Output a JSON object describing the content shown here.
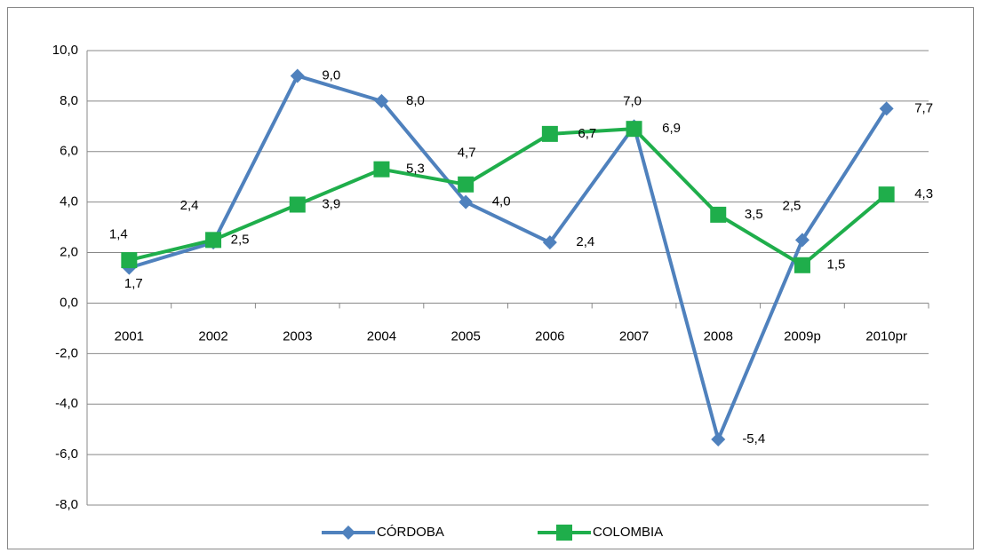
{
  "chart_data": {
    "type": "line",
    "categories": [
      "2001",
      "2002",
      "2003",
      "2004",
      "2005",
      "2006",
      "2007",
      "2008",
      "2009p",
      "2010pr"
    ],
    "series": [
      {
        "name": "CÓRDOBA",
        "color": "#4f81bd",
        "marker": "diamond",
        "values": [
          1.4,
          2.4,
          9.0,
          8.0,
          4.0,
          2.4,
          7.0,
          -5.4,
          2.5,
          7.7
        ],
        "value_labels": [
          "1,4",
          "2,4",
          "9,0",
          "8,0",
          "4,0",
          "2,4",
          "7,0",
          "-5,4",
          "2,5",
          "7,7"
        ]
      },
      {
        "name": "COLOMBIA",
        "color": "#1fae4b",
        "marker": "square",
        "values": [
          1.7,
          2.5,
          3.9,
          5.3,
          4.7,
          6.7,
          6.9,
          3.5,
          1.5,
          4.3
        ],
        "value_labels": [
          "1,7",
          "2,5",
          "3,9",
          "5,3",
          "4,7",
          "6,7",
          "6,9",
          "3,5",
          "1,5",
          "4,3"
        ]
      }
    ],
    "ylim": [
      -8,
      10
    ],
    "yticks": [
      {
        "value": -8,
        "label": "-8,0"
      },
      {
        "value": -6,
        "label": "-6,0"
      },
      {
        "value": -4,
        "label": "-4,0"
      },
      {
        "value": -2,
        "label": "-2,0"
      },
      {
        "value": 0,
        "label": "0,0"
      },
      {
        "value": 2,
        "label": "2,0"
      },
      {
        "value": 4,
        "label": "4,0"
      },
      {
        "value": 6,
        "label": "6,0"
      },
      {
        "value": 8,
        "label": "8,0"
      },
      {
        "value": 10,
        "label": "10,0"
      }
    ],
    "grid": true,
    "legend": "bottom"
  }
}
